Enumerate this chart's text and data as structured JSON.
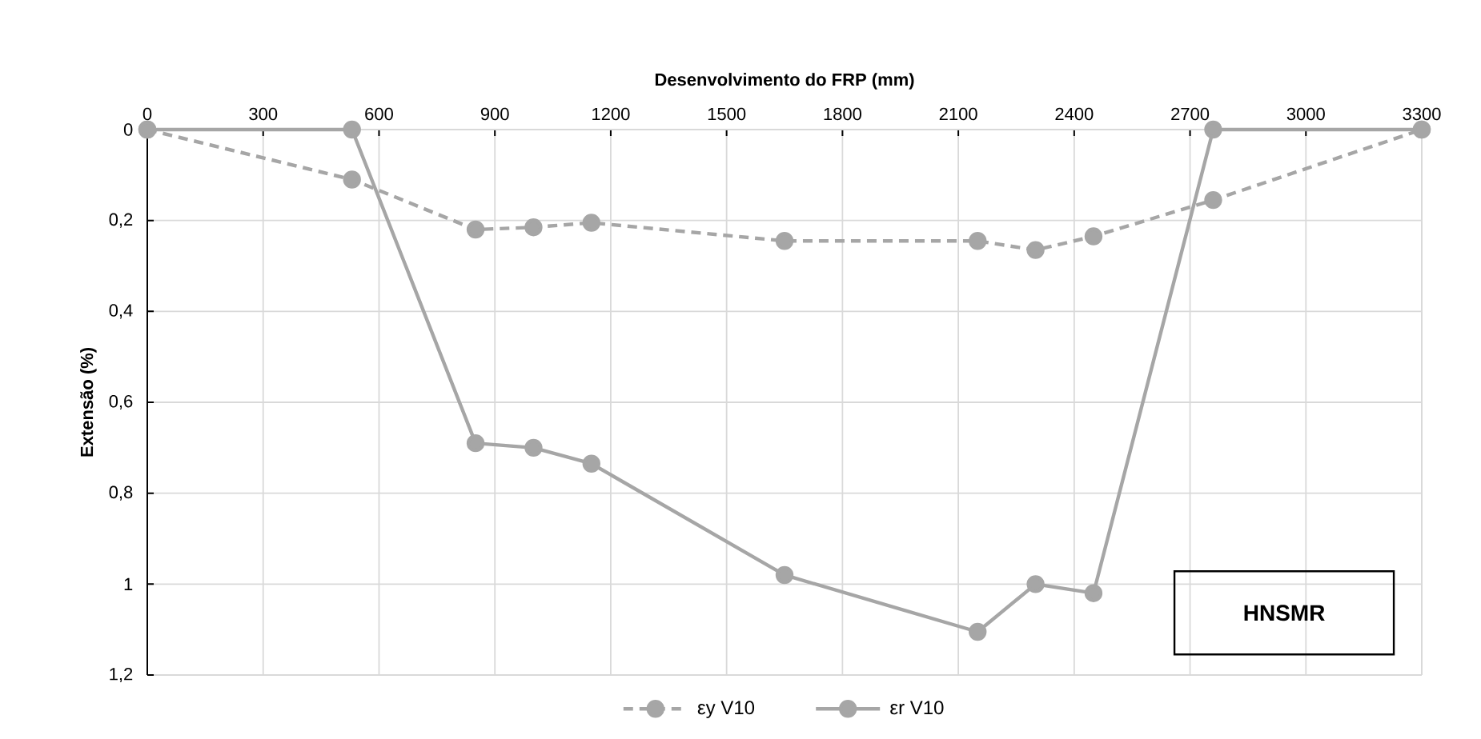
{
  "chart_data": {
    "type": "line",
    "title": "Desenvolvimento do FRP (mm)",
    "ylabel": "Extensão (%)",
    "annotations": [
      "HNSMR"
    ],
    "x": [
      0,
      530,
      850,
      1000,
      1150,
      1650,
      2150,
      2300,
      2450,
      2760,
      3300
    ],
    "series": [
      {
        "name": "εy V10",
        "color": "#a6a6a6",
        "line_style": "dashed",
        "values": [
          0,
          0.11,
          0.22,
          0.215,
          0.205,
          0.245,
          0.245,
          0.265,
          0.235,
          0.155,
          0
        ]
      },
      {
        "name": "εr V10",
        "color": "#a6a6a6",
        "line_style": "solid",
        "values": [
          0,
          0,
          0.69,
          0.7,
          0.735,
          0.98,
          1.105,
          1.0,
          1.02,
          0,
          0
        ]
      }
    ],
    "xlim": [
      0,
      3300
    ],
    "xticks": [
      0,
      300,
      600,
      900,
      1200,
      1500,
      1800,
      2100,
      2400,
      2700,
      3000,
      3300
    ],
    "ylim": [
      1.2,
      0
    ],
    "yticks": [
      0,
      {
        "value": 0.2,
        "label": "0,2"
      },
      {
        "value": 0.4,
        "label": "0,4"
      },
      {
        "value": 0.6,
        "label": "0,6"
      },
      {
        "value": 0.8,
        "label": "0,8"
      },
      1,
      {
        "value": 1.2,
        "label": "1,2"
      }
    ],
    "grid": true,
    "legend": "bottom",
    "marker": "circle"
  }
}
